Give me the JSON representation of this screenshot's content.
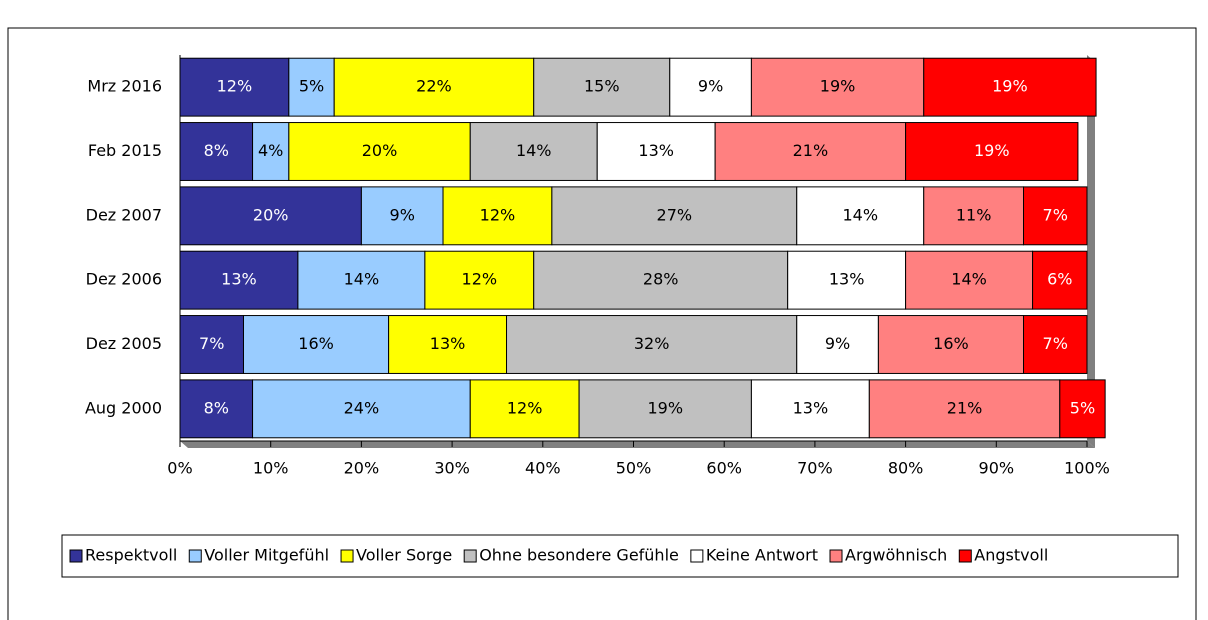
{
  "chart_data": {
    "type": "stacked_barh",
    "categories": [
      "Mrz 2016",
      "Feb 2015",
      "Dez 2007",
      "Dez 2006",
      "Dez 2005",
      "Aug 2000"
    ],
    "series": [
      {
        "name": "Respektvoll",
        "color": "#333399",
        "values": [
          12,
          8,
          20,
          13,
          7,
          8
        ],
        "value_labels": [
          "12%",
          "8%",
          "20%",
          "13%",
          "7%",
          "8%"
        ]
      },
      {
        "name": "Voller Mitgefühl",
        "color": "#99ccff",
        "values": [
          5,
          4,
          9,
          14,
          16,
          24
        ],
        "value_labels": [
          "5%",
          "4%",
          "9%",
          "14%",
          "16%",
          "24%"
        ]
      },
      {
        "name": "Voller Sorge",
        "color": "#ffff00",
        "values": [
          22,
          20,
          12,
          12,
          13,
          12
        ],
        "value_labels": [
          "22%",
          "20%",
          "12%",
          "12%",
          "13%",
          "12%"
        ]
      },
      {
        "name": "Ohne besondere Gefühle",
        "color": "#c0c0c0",
        "values": [
          15,
          14,
          27,
          28,
          32,
          19
        ],
        "value_labels": [
          "15%",
          "14%",
          "27%",
          "28%",
          "32%",
          "19%"
        ]
      },
      {
        "name": "Keine Antwort",
        "color": "#ffffff",
        "values": [
          9,
          13,
          14,
          13,
          9,
          13
        ],
        "value_labels": [
          "9%",
          "13%",
          "14%",
          "13%",
          "9%",
          "13%"
        ]
      },
      {
        "name": "Argwöhnisch",
        "color": "#ff8080",
        "values": [
          19,
          21,
          11,
          14,
          16,
          21
        ],
        "value_labels": [
          "19%",
          "21%",
          "11%",
          "14%",
          "16%",
          "21%"
        ]
      },
      {
        "name": "Angstvoll",
        "color": "#ff0000",
        "values": [
          19,
          19,
          7,
          6,
          7,
          5
        ],
        "value_labels": [
          "19%",
          "19%",
          "7%",
          "6%",
          "7%",
          "5%"
        ]
      }
    ],
    "xlim": [
      0,
      100
    ],
    "xticks": [
      {
        "value": 0,
        "label": "0%"
      },
      {
        "value": 10,
        "label": "10%"
      },
      {
        "value": 20,
        "label": "20%"
      },
      {
        "value": 30,
        "label": "30%"
      },
      {
        "value": 40,
        "label": "40%"
      },
      {
        "value": 50,
        "label": "50%"
      },
      {
        "value": 60,
        "label": "60%"
      },
      {
        "value": 70,
        "label": "70%"
      },
      {
        "value": 80,
        "label": "80%"
      },
      {
        "value": 90,
        "label": "90%"
      },
      {
        "value": {
          "value": 100,
          "label": "100%"
        }
      }
    ]
  }
}
